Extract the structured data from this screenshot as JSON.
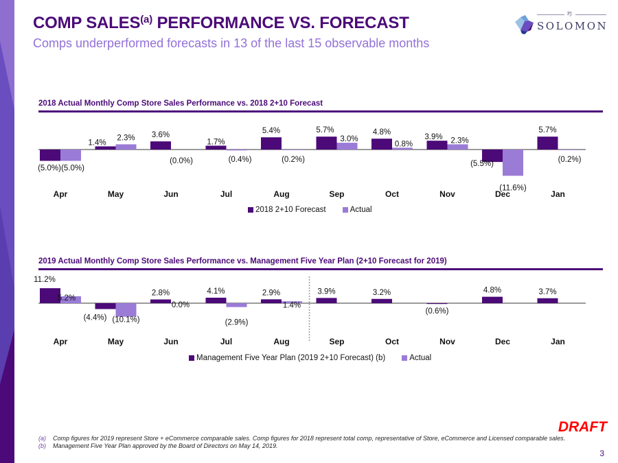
{
  "header": {
    "title_main": "COMP SALES",
    "title_sup": "(a)",
    "title_rest": " PERFORMANCE VS. FORECAST",
    "subtitle": "Comps underperformed forecasts in 13 of the last 15 observable months"
  },
  "logo": {
    "pj": "PJ",
    "name": "SOLOMON"
  },
  "colors": {
    "primary": "#4b0a78",
    "secondary": "#9a7bd6",
    "accent": "#9370d8",
    "draft": "#ff0000"
  },
  "chart_data": [
    {
      "type": "bar",
      "title": "2018 Actual Monthly Comp Store Sales Performance vs. 2018 2+10 Forecast",
      "categories": [
        "Apr",
        "May",
        "Jun",
        "Jul",
        "Aug",
        "Sep",
        "Oct",
        "Nov",
        "Dec",
        "Jan"
      ],
      "series": [
        {
          "name": "2018 2+10 Forecast",
          "values": [
            -5.0,
            1.4,
            3.6,
            1.7,
            5.4,
            5.7,
            4.8,
            3.9,
            -5.5,
            5.7
          ]
        },
        {
          "name": "Actual",
          "values": [
            -5.0,
            2.3,
            0.0,
            -0.4,
            -0.2,
            3.0,
            0.8,
            2.3,
            -11.6,
            -0.2
          ]
        }
      ],
      "labels": [
        [
          "(5.0%)",
          "1.4%",
          "3.6%",
          "1.7%",
          "5.4%",
          "5.7%",
          "4.8%",
          "3.9%",
          "(5.5%)",
          "5.7%"
        ],
        [
          "(5.0%)",
          "2.3%",
          "(0.0%)",
          "(0.4%)",
          "(0.2%)",
          "3.0%",
          "0.8%",
          "2.3%",
          "(11.6%)",
          "(0.2%)"
        ]
      ],
      "unit": "%",
      "legend": "bottom-center",
      "grid": false
    },
    {
      "type": "bar",
      "title": "2019 Actual Monthly Comp Store Sales Performance vs. Management Five Year Plan (2+10 Forecast for 2019)",
      "categories": [
        "Apr",
        "May",
        "Jun",
        "Jul",
        "Aug",
        "Sep",
        "Oct",
        "Nov",
        "Dec",
        "Jan"
      ],
      "series": [
        {
          "name": "Management Five Year Plan (2019 2+10 Forecast) (b)",
          "values": [
            11.2,
            -4.4,
            2.8,
            4.1,
            2.9,
            3.9,
            3.2,
            -0.6,
            4.8,
            3.7
          ]
        },
        {
          "name": "Actual",
          "values": [
            5.2,
            -10.1,
            0.0,
            -2.9,
            1.4,
            null,
            null,
            null,
            null,
            null
          ]
        }
      ],
      "labels": [
        [
          "11.2%",
          "(4.4%)",
          "2.8%",
          "4.1%",
          "2.9%",
          "3.9%",
          "3.2%",
          "(0.6%)",
          "4.8%",
          "3.7%"
        ],
        [
          "5.2%",
          "(10.1%)",
          "0.0%",
          "(2.9%)",
          "1.4%",
          null,
          null,
          null,
          null,
          null
        ]
      ],
      "divider_after": "Aug",
      "unit": "%",
      "legend": "bottom-center",
      "grid": false
    }
  ],
  "draft_label": "DRAFT",
  "footnotes": [
    {
      "mark": "(a)",
      "text": "Comp figures for 2019 represent Store + eCommerce comparable sales. Comp figures for 2018 represent total comp, representative of Store, eCommerce and Licensed comparable sales."
    },
    {
      "mark": "(b)",
      "text": "Management Five Year Plan approved by the Board of Directors on May 14, 2019."
    }
  ],
  "page_number": "3"
}
